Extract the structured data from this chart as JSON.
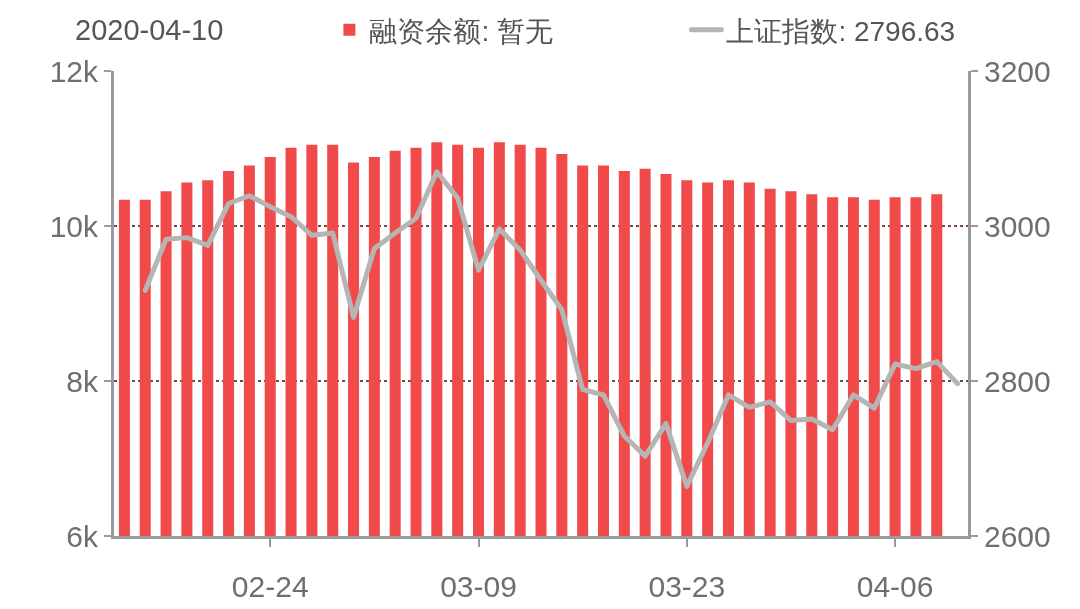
{
  "chart_data": {
    "type": "bar",
    "title": "2020-04-10",
    "categories": [
      null,
      null,
      null,
      null,
      null,
      null,
      null,
      "02-24",
      null,
      null,
      null,
      null,
      null,
      null,
      null,
      null,
      null,
      "03-09",
      null,
      null,
      null,
      null,
      null,
      null,
      null,
      null,
      null,
      "03-23",
      null,
      null,
      null,
      null,
      null,
      null,
      null,
      null,
      null,
      "04-06",
      null,
      null,
      null
    ],
    "series": [
      {
        "name": "融资余额: 暂无",
        "color": "#f14a4a",
        "values": [
          10340,
          10340,
          10450,
          10560,
          10590,
          10710,
          10780,
          10890,
          11010,
          11050,
          11050,
          10820,
          10890,
          10970,
          11010,
          11080,
          11050,
          11010,
          11080,
          11050,
          11010,
          10930,
          10780,
          10780,
          10710,
          10740,
          10670,
          10590,
          10560,
          10590,
          10560,
          10480,
          10450,
          10410,
          10370,
          10370,
          10340,
          10370,
          10370,
          10410,
          null
        ]
      },
      {
        "name": "上证指数: 2796.63",
        "color": "#b5b5b5",
        "type": "line",
        "axis": "y2",
        "values": [
          null,
          2917,
          2983,
          2985,
          2975,
          3029,
          3039,
          3025,
          3012,
          2988,
          2991,
          2882,
          2971,
          2991,
          3010,
          3070,
          3036,
          2943,
          2996,
          2969,
          2930,
          2892,
          2789,
          2782,
          2729,
          2703,
          2745,
          2664,
          2720,
          2782,
          2766,
          2773,
          2749,
          2751,
          2737,
          2782,
          2765,
          2822,
          2816,
          2825,
          2796.63
        ]
      }
    ],
    "ylim": [
      6000,
      12000
    ],
    "yticks": [
      {
        "value": 6000,
        "label": "6k"
      },
      {
        "value": 8000,
        "label": "8k"
      },
      {
        "value": 10000,
        "label": "10k"
      },
      {
        "value": 12000,
        "label": "12k"
      }
    ],
    "y2lim": [
      2600,
      3200
    ],
    "y2ticks": [
      2600,
      2800,
      3000,
      3200
    ],
    "grid": "y",
    "legend": "top"
  }
}
